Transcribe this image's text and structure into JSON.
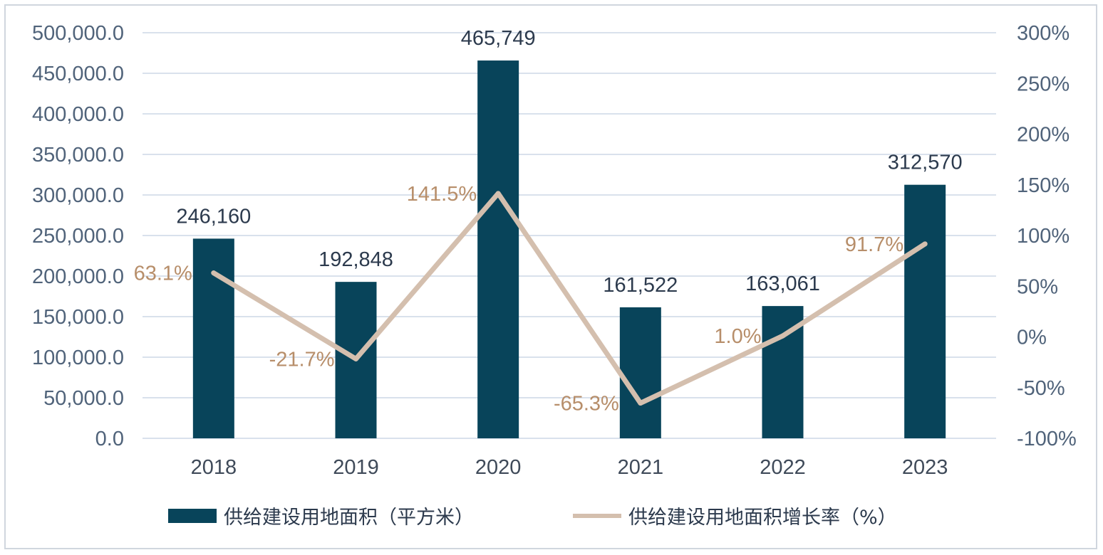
{
  "chart_data": {
    "type": "bar",
    "categories": [
      "2018",
      "2019",
      "2020",
      "2021",
      "2022",
      "2023"
    ],
    "series": [
      {
        "name": "供给建设用地面积（平方米）",
        "type": "bar",
        "axis": "left",
        "color": "#08445a",
        "values": [
          246160,
          192848,
          465749,
          161522,
          163061,
          312570
        ],
        "labels": [
          "246,160",
          "192,848",
          "465,749",
          "161,522",
          "163,061",
          "312,570"
        ]
      },
      {
        "name": "供给建设用地面积增长率（%）",
        "type": "line",
        "axis": "right",
        "color": "#d4bfae",
        "values": [
          63.1,
          -21.7,
          141.5,
          -65.3,
          1.0,
          91.7
        ],
        "labels": [
          "63.1%",
          "-21.7%",
          "141.5%",
          "-65.3%",
          "1.0%",
          "91.7%"
        ]
      }
    ],
    "left_axis": {
      "ylim": [
        0,
        500000
      ],
      "ticks": [
        0,
        50000,
        100000,
        150000,
        200000,
        250000,
        300000,
        350000,
        400000,
        450000,
        500000
      ],
      "tick_labels": [
        "0.0",
        "50,000.0",
        "100,000.0",
        "150,000.0",
        "200,000.0",
        "250,000.0",
        "300,000.0",
        "350,000.0",
        "400,000.0",
        "450,000.0",
        "500,000.0"
      ]
    },
    "right_axis": {
      "ylim": [
        -100,
        300
      ],
      "ticks": [
        -100,
        -50,
        0,
        50,
        100,
        150,
        200,
        250,
        300
      ],
      "tick_labels": [
        "-100%",
        "-50%",
        "0%",
        "50%",
        "100%",
        "150%",
        "200%",
        "250%",
        "300%"
      ]
    },
    "grid": true,
    "legend": "bottom",
    "gridline_color": "#d9e1ec",
    "label_color_line": "#b78e6a"
  }
}
